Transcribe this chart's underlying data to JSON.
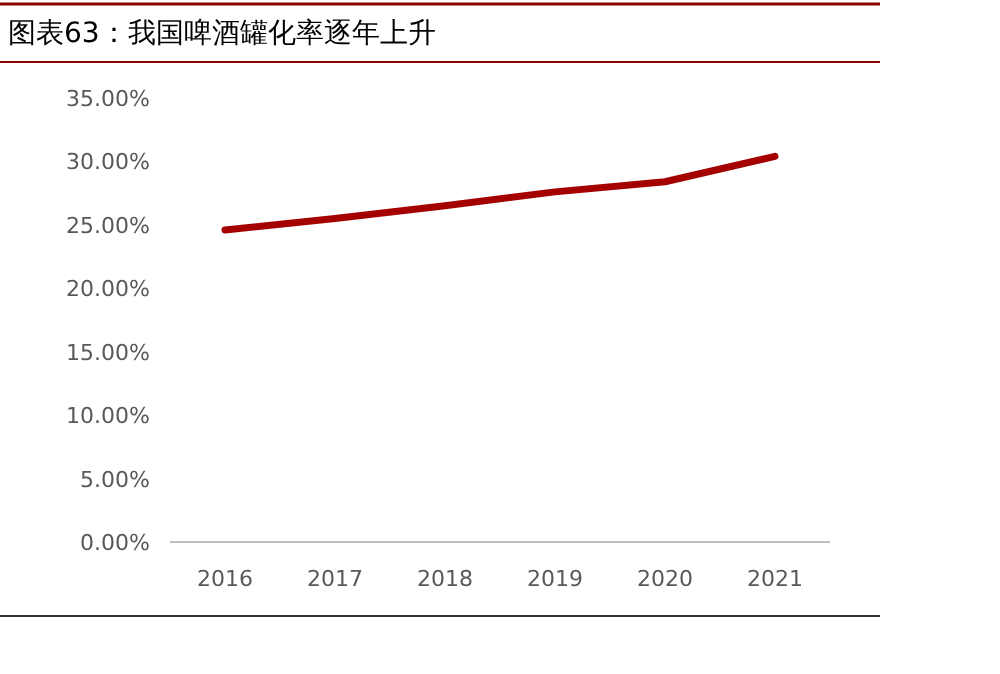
{
  "chart_data": {
    "type": "line",
    "title": "图表63：我国啤酒罐化率逐年上升",
    "categories": [
      "2016",
      "2017",
      "2018",
      "2019",
      "2020",
      "2021"
    ],
    "values": [
      24.6,
      25.5,
      26.5,
      27.6,
      28.4,
      30.4
    ],
    "color": "#a50000",
    "ylim": [
      0,
      35
    ],
    "yticks": [
      {
        "value": 0,
        "label": "0.00%"
      },
      {
        "value": 5,
        "label": "5.00%"
      },
      {
        "value": 10,
        "label": "10.00%"
      },
      {
        "value": 15,
        "label": "15.00%"
      },
      {
        "value": 20,
        "label": "20.00%"
      },
      {
        "value": 25,
        "label": "25.00%"
      },
      {
        "value": 30,
        "label": "30.00%"
      },
      {
        "value": 35,
        "label": "35.00%"
      }
    ]
  }
}
